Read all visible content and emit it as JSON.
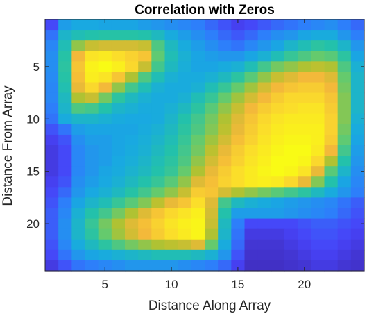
{
  "chart_data": {
    "type": "heatmap",
    "title": "Correlation with Zeros",
    "xlabel": "Distance Along Array",
    "ylabel": "Distance From Array",
    "x_range": [
      1,
      24
    ],
    "y_range": [
      1,
      24
    ],
    "y_direction": "reverse",
    "xticks": [
      5,
      10,
      15,
      20
    ],
    "yticks": [
      5,
      10,
      15,
      20
    ],
    "value_range": [
      0,
      1
    ],
    "colormap": "parula",
    "grid": false,
    "legend": "none",
    "colors": [
      "#3e26a8",
      "#4743f8",
      "#2c80fa",
      "#18aae0",
      "#23c2a9",
      "#62ca70",
      "#b4c22f",
      "#f3b83a",
      "#fbdb2c",
      "#f9fb15"
    ],
    "values": [
      [
        0.12,
        0.3,
        0.33,
        0.33,
        0.32,
        0.32,
        0.32,
        0.3,
        0.28,
        0.26,
        0.24,
        0.22,
        0.18,
        0.14,
        0.1,
        0.12,
        0.15,
        0.18,
        0.2,
        0.22,
        0.24,
        0.26,
        0.22,
        0.18
      ],
      [
        0.2,
        0.38,
        0.42,
        0.44,
        0.45,
        0.45,
        0.45,
        0.44,
        0.4,
        0.34,
        0.3,
        0.26,
        0.22,
        0.18,
        0.15,
        0.18,
        0.22,
        0.26,
        0.28,
        0.32,
        0.34,
        0.34,
        0.28,
        0.22
      ],
      [
        0.24,
        0.42,
        0.62,
        0.7,
        0.72,
        0.72,
        0.72,
        0.7,
        0.52,
        0.4,
        0.34,
        0.3,
        0.26,
        0.22,
        0.2,
        0.24,
        0.28,
        0.32,
        0.38,
        0.42,
        0.46,
        0.44,
        0.38,
        0.28
      ],
      [
        0.26,
        0.45,
        0.78,
        0.92,
        0.94,
        0.9,
        0.86,
        0.82,
        0.55,
        0.42,
        0.36,
        0.32,
        0.3,
        0.28,
        0.28,
        0.32,
        0.36,
        0.42,
        0.48,
        0.52,
        0.56,
        0.54,
        0.46,
        0.32
      ],
      [
        0.26,
        0.46,
        0.82,
        0.97,
        1.0,
        0.96,
        0.88,
        0.7,
        0.5,
        0.4,
        0.35,
        0.32,
        0.32,
        0.34,
        0.36,
        0.42,
        0.5,
        0.58,
        0.62,
        0.66,
        0.68,
        0.66,
        0.52,
        0.36
      ],
      [
        0.25,
        0.45,
        0.8,
        0.95,
        0.92,
        0.82,
        0.66,
        0.52,
        0.42,
        0.36,
        0.34,
        0.34,
        0.36,
        0.4,
        0.46,
        0.54,
        0.62,
        0.7,
        0.74,
        0.78,
        0.78,
        0.74,
        0.56,
        0.38
      ],
      [
        0.24,
        0.43,
        0.76,
        0.88,
        0.78,
        0.62,
        0.5,
        0.42,
        0.36,
        0.34,
        0.34,
        0.36,
        0.42,
        0.48,
        0.56,
        0.64,
        0.72,
        0.78,
        0.82,
        0.84,
        0.84,
        0.78,
        0.58,
        0.38
      ],
      [
        0.24,
        0.4,
        0.66,
        0.7,
        0.58,
        0.46,
        0.4,
        0.36,
        0.34,
        0.34,
        0.36,
        0.42,
        0.48,
        0.56,
        0.64,
        0.72,
        0.78,
        0.84,
        0.88,
        0.88,
        0.88,
        0.82,
        0.6,
        0.38
      ],
      [
        0.22,
        0.38,
        0.52,
        0.5,
        0.44,
        0.38,
        0.36,
        0.34,
        0.34,
        0.36,
        0.4,
        0.46,
        0.54,
        0.62,
        0.7,
        0.78,
        0.84,
        0.88,
        0.9,
        0.92,
        0.92,
        0.84,
        0.6,
        0.38
      ],
      [
        0.2,
        0.34,
        0.38,
        0.38,
        0.36,
        0.34,
        0.33,
        0.33,
        0.34,
        0.38,
        0.44,
        0.5,
        0.58,
        0.66,
        0.74,
        0.82,
        0.88,
        0.92,
        0.94,
        0.94,
        0.94,
        0.86,
        0.6,
        0.36
      ],
      [
        0.14,
        0.2,
        0.3,
        0.32,
        0.32,
        0.32,
        0.32,
        0.34,
        0.36,
        0.4,
        0.46,
        0.52,
        0.6,
        0.68,
        0.76,
        0.84,
        0.9,
        0.94,
        0.96,
        0.96,
        0.96,
        0.86,
        0.58,
        0.34
      ],
      [
        0.1,
        0.14,
        0.26,
        0.3,
        0.3,
        0.32,
        0.33,
        0.35,
        0.38,
        0.42,
        0.48,
        0.56,
        0.64,
        0.72,
        0.8,
        0.86,
        0.92,
        0.96,
        0.98,
        0.98,
        0.96,
        0.84,
        0.55,
        0.32
      ],
      [
        0.08,
        0.12,
        0.24,
        0.28,
        0.3,
        0.32,
        0.34,
        0.36,
        0.4,
        0.44,
        0.5,
        0.58,
        0.68,
        0.76,
        0.84,
        0.9,
        0.94,
        0.98,
        1.0,
        1.0,
        0.94,
        0.78,
        0.5,
        0.3
      ],
      [
        0.08,
        0.12,
        0.24,
        0.28,
        0.3,
        0.33,
        0.35,
        0.38,
        0.42,
        0.46,
        0.52,
        0.62,
        0.72,
        0.8,
        0.86,
        0.92,
        0.96,
        1.0,
        1.0,
        0.98,
        0.88,
        0.66,
        0.44,
        0.28
      ],
      [
        0.08,
        0.12,
        0.24,
        0.28,
        0.32,
        0.34,
        0.37,
        0.4,
        0.44,
        0.48,
        0.56,
        0.66,
        0.76,
        0.84,
        0.9,
        0.94,
        0.98,
        1.0,
        0.98,
        0.92,
        0.76,
        0.54,
        0.38,
        0.26
      ],
      [
        0.1,
        0.14,
        0.26,
        0.3,
        0.33,
        0.36,
        0.4,
        0.44,
        0.48,
        0.54,
        0.62,
        0.74,
        0.8,
        0.86,
        0.9,
        0.94,
        0.96,
        0.94,
        0.88,
        0.76,
        0.6,
        0.44,
        0.32,
        0.24
      ],
      [
        0.12,
        0.18,
        0.28,
        0.33,
        0.36,
        0.4,
        0.45,
        0.5,
        0.56,
        0.62,
        0.7,
        0.84,
        0.82,
        0.72,
        0.66,
        0.62,
        0.58,
        0.54,
        0.5,
        0.46,
        0.4,
        0.34,
        0.28,
        0.22
      ],
      [
        0.14,
        0.22,
        0.32,
        0.38,
        0.42,
        0.48,
        0.54,
        0.6,
        0.68,
        0.76,
        0.82,
        0.9,
        0.74,
        0.5,
        0.4,
        0.36,
        0.34,
        0.32,
        0.3,
        0.28,
        0.26,
        0.24,
        0.2,
        0.16
      ],
      [
        0.16,
        0.24,
        0.36,
        0.44,
        0.5,
        0.58,
        0.66,
        0.74,
        0.82,
        0.88,
        0.92,
        0.96,
        0.72,
        0.44,
        0.3,
        0.3,
        0.3,
        0.3,
        0.28,
        0.26,
        0.24,
        0.22,
        0.18,
        0.14
      ],
      [
        0.16,
        0.26,
        0.38,
        0.48,
        0.58,
        0.66,
        0.74,
        0.8,
        0.86,
        0.92,
        0.96,
        0.98,
        0.7,
        0.4,
        0.22,
        0.12,
        0.12,
        0.12,
        0.12,
        0.14,
        0.16,
        0.16,
        0.14,
        0.12
      ],
      [
        0.16,
        0.26,
        0.38,
        0.46,
        0.56,
        0.64,
        0.72,
        0.78,
        0.84,
        0.9,
        0.94,
        0.98,
        0.66,
        0.38,
        0.2,
        0.08,
        0.08,
        0.08,
        0.1,
        0.12,
        0.14,
        0.14,
        0.12,
        0.1
      ],
      [
        0.14,
        0.24,
        0.34,
        0.4,
        0.46,
        0.52,
        0.58,
        0.62,
        0.66,
        0.68,
        0.7,
        0.74,
        0.56,
        0.34,
        0.18,
        0.06,
        0.06,
        0.06,
        0.08,
        0.1,
        0.12,
        0.12,
        0.1,
        0.08
      ],
      [
        0.12,
        0.2,
        0.28,
        0.32,
        0.34,
        0.36,
        0.38,
        0.4,
        0.42,
        0.42,
        0.42,
        0.4,
        0.36,
        0.28,
        0.14,
        0.05,
        0.05,
        0.05,
        0.06,
        0.08,
        0.1,
        0.1,
        0.08,
        0.06
      ],
      [
        0.08,
        0.14,
        0.2,
        0.22,
        0.24,
        0.26,
        0.28,
        0.28,
        0.28,
        0.28,
        0.26,
        0.24,
        0.22,
        0.18,
        0.1,
        0.04,
        0.04,
        0.04,
        0.05,
        0.06,
        0.08,
        0.08,
        0.06,
        0.05
      ]
    ]
  }
}
